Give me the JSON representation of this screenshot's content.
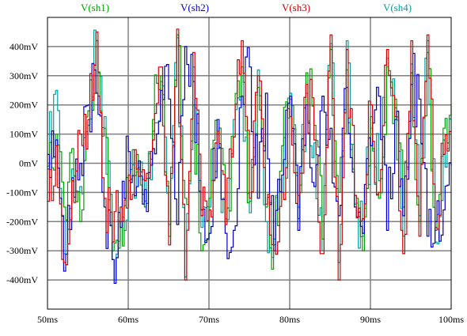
{
  "chart_data": {
    "type": "line",
    "x_label": "",
    "y_label": "",
    "xlim": [
      50,
      100
    ],
    "ylim": [
      -500,
      500
    ],
    "x_ticks": [
      50,
      60,
      70,
      80,
      90,
      100
    ],
    "x_tick_labels": [
      "50ms",
      "60ms",
      "70ms",
      "80ms",
      "90ms",
      "100ms"
    ],
    "y_ticks": [
      -400,
      -300,
      -200,
      -100,
      0,
      100,
      200,
      300,
      400
    ],
    "y_tick_labels": [
      "-400mV",
      "-300mV",
      "-200mV",
      "-100mV",
      "0mV",
      "100mV",
      "200mV",
      "300mV",
      "400mV"
    ],
    "grid": true,
    "legend_position": "top",
    "series": [
      {
        "name": "V(sh1)",
        "color": "#00a000",
        "x": [
          50,
          51,
          52,
          53,
          54,
          55,
          56,
          57,
          58,
          59,
          60,
          61,
          62,
          63,
          64,
          65,
          66,
          67,
          68,
          69,
          70,
          71,
          72,
          73,
          74,
          75,
          76,
          77,
          78,
          79,
          80,
          81,
          82,
          83,
          84,
          85,
          86,
          87,
          88,
          89,
          90,
          91,
          92,
          93,
          94,
          95,
          96,
          97,
          98,
          99,
          100
        ],
        "values": [
          -20,
          100,
          -150,
          50,
          -200,
          180,
          420,
          120,
          -300,
          -200,
          -100,
          30,
          -150,
          150,
          300,
          -250,
          440,
          -120,
          200,
          -300,
          -120,
          100,
          -200,
          90,
          330,
          -130,
          260,
          -150,
          -280,
          60,
          220,
          -190,
          310,
          130,
          -260,
          390,
          -100,
          320,
          -110,
          -300,
          160,
          -120,
          330,
          220,
          -150,
          310,
          -200,
          380,
          -230,
          120,
          200
        ]
      },
      {
        "name": "V(sh2)",
        "color": "#0000c0",
        "x": [
          50,
          51,
          52,
          53,
          54,
          55,
          56,
          57,
          58,
          59,
          60,
          61,
          62,
          63,
          64,
          65,
          66,
          67,
          68,
          69,
          70,
          71,
          72,
          73,
          74,
          75,
          76,
          77,
          78,
          79,
          80,
          81,
          82,
          83,
          84,
          85,
          86,
          87,
          88,
          89,
          90,
          91,
          92,
          93,
          94,
          95,
          96,
          97,
          98,
          99,
          100
        ],
        "values": [
          30,
          80,
          -370,
          -50,
          0,
          200,
          240,
          -150,
          -330,
          -220,
          40,
          -80,
          -90,
          50,
          250,
          220,
          -210,
          400,
          280,
          -160,
          -240,
          150,
          -240,
          -230,
          230,
          330,
          -120,
          240,
          -300,
          -40,
          230,
          -230,
          200,
          -80,
          230,
          120,
          -180,
          260,
          -150,
          -240,
          60,
          230,
          -230,
          150,
          -180,
          270,
          220,
          -250,
          -200,
          -160,
          -10
        ]
      },
      {
        "name": "V(sh3)",
        "color": "#d00000",
        "x": [
          50,
          51,
          52,
          53,
          54,
          55,
          56,
          57,
          58,
          59,
          60,
          61,
          62,
          63,
          64,
          65,
          66,
          67,
          68,
          69,
          70,
          71,
          72,
          73,
          74,
          75,
          76,
          77,
          78,
          79,
          80,
          81,
          82,
          83,
          84,
          85,
          86,
          87,
          88,
          89,
          90,
          91,
          92,
          93,
          94,
          95,
          96,
          97,
          98,
          99,
          100
        ],
        "values": [
          -130,
          60,
          -340,
          -60,
          100,
          150,
          450,
          -120,
          -270,
          -150,
          -40,
          -20,
          -60,
          80,
          330,
          -280,
          460,
          -400,
          380,
          -180,
          -160,
          110,
          -210,
          90,
          420,
          -120,
          300,
          -140,
          -300,
          -100,
          160,
          -110,
          270,
          80,
          -310,
          440,
          -400,
          390,
          -110,
          -190,
          200,
          -100,
          390,
          160,
          -310,
          420,
          -250,
          440,
          -220,
          30,
          110
        ]
      },
      {
        "name": "V(sh4)",
        "color": "#00a0a0",
        "x": [
          50,
          51,
          52,
          53,
          54,
          55,
          56,
          57,
          58,
          59,
          60,
          61,
          62,
          63,
          64,
          65,
          66,
          67,
          68,
          69,
          70,
          71,
          72,
          73,
          74,
          75,
          76,
          77,
          78,
          79,
          80,
          81,
          82,
          83,
          84,
          85,
          86,
          87,
          88,
          89,
          90,
          91,
          92,
          93,
          94,
          95,
          96,
          97,
          98,
          99,
          100
        ],
        "values": [
          -10,
          250,
          -310,
          -20,
          -80,
          130,
          420,
          160,
          -330,
          -200,
          -60,
          -30,
          -130,
          110,
          280,
          -210,
          430,
          -390,
          330,
          -220,
          -150,
          50,
          -190,
          150,
          300,
          -170,
          320,
          -200,
          -260,
          -100,
          240,
          -150,
          240,
          70,
          -300,
          410,
          -340,
          420,
          -140,
          -250,
          120,
          -60,
          360,
          190,
          -250,
          340,
          -180,
          420,
          -270,
          80,
          150
        ]
      }
    ]
  }
}
